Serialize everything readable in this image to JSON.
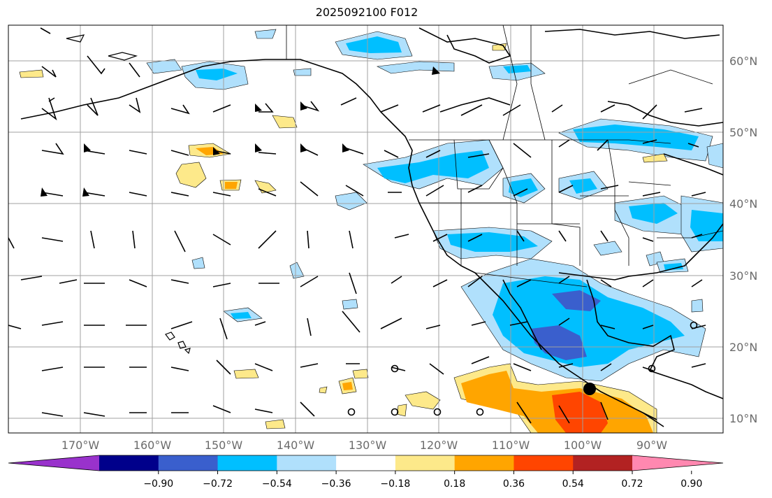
{
  "title": "2025092100 F012",
  "map": {
    "lon_labels": [
      "170°W",
      "160°W",
      "150°W",
      "140°W",
      "130°W",
      "120°W",
      "110°W",
      "100°W",
      "90°W"
    ],
    "lat_labels": [
      "60°N",
      "50°N",
      "40°N",
      "30°N",
      "20°N",
      "10°N"
    ],
    "gridlines": true
  },
  "colorbar": {
    "labels": [
      "−0.90",
      "−0.72",
      "−0.54",
      "−0.36",
      "−0.18",
      "0.18",
      "0.36",
      "0.54",
      "0.72",
      "0.90"
    ],
    "colors": [
      "#9932cc",
      "#00008b",
      "#3a5fcd",
      "#00bfff",
      "#b0e0fc",
      "#ffffff",
      "#fde98a",
      "#ffa500",
      "#ff4500",
      "#b22222",
      "#ff88b0"
    ]
  },
  "markers": {
    "filled_dot": "storm-center-marker",
    "open_circles": "calm-wind-markers"
  }
}
